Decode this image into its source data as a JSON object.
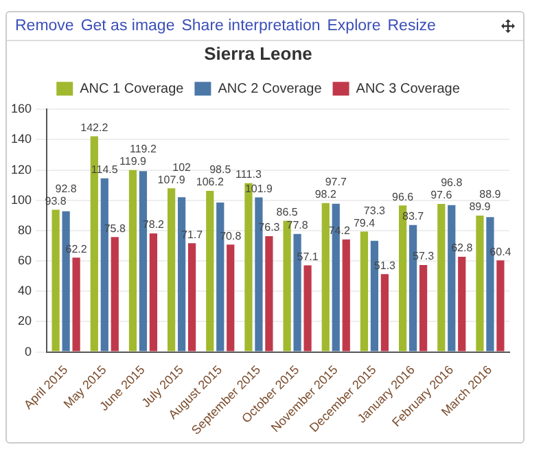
{
  "chart_data": {
    "type": "bar",
    "title": "Sierra Leone",
    "annotations": [
      "Remove",
      "Get as image",
      "Share interpretation",
      "Explore",
      "Resize"
    ],
    "categories": [
      "April 2015",
      "May 2015",
      "June 2015",
      "July 2015",
      "August 2015",
      "September 2015",
      "October 2015",
      "November 2015",
      "December 2015",
      "January 2016",
      "February 2016",
      "March 2016"
    ],
    "series": [
      {
        "name": "ANC 1 Coverage",
        "color": "#a1b92e",
        "values": [
          93.8,
          142.2,
          119.9,
          107.9,
          106.2,
          111.3,
          86.5,
          98.2,
          79.4,
          96.6,
          97.6,
          89.9
        ]
      },
      {
        "name": "ANC 2 Coverage",
        "color": "#4c78a8",
        "values": [
          92.8,
          114.5,
          119.2,
          102,
          98.5,
          101.9,
          77.8,
          97.7,
          73.3,
          83.7,
          96.8,
          88.9
        ]
      },
      {
        "name": "ANC 3 Coverage",
        "color": "#c0394b",
        "values": [
          62.2,
          75.8,
          78.2,
          71.7,
          70.8,
          76.3,
          57.1,
          74.2,
          51.3,
          57.3,
          62.8,
          60.4
        ]
      }
    ],
    "ylim": [
      0,
      160
    ],
    "yticks": [
      0,
      20,
      40,
      60,
      80,
      100,
      120,
      140,
      160
    ],
    "grid": "y",
    "legend": "top",
    "data_labels": true
  }
}
